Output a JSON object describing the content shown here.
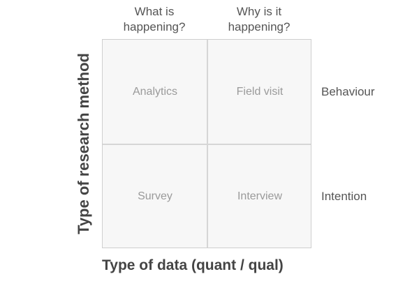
{
  "columns": [
    {
      "line1": "What is",
      "line2": "happening?"
    },
    {
      "line1": "Why is it",
      "line2": "happening?"
    }
  ],
  "rows": [
    "Behaviour",
    "Intention"
  ],
  "cells": {
    "top_left": "Analytics",
    "top_right": "Field visit",
    "bottom_left": "Survey",
    "bottom_right": "Interview"
  },
  "axis": {
    "y_title": "Type of research method",
    "x_title": "Type of data (quant / qual)"
  },
  "colors": {
    "cell_fill": "#f7f7f7",
    "grid_line": "#d6d6d6",
    "cell_text": "#9a9a9a",
    "label_text": "#555555",
    "title_text": "#444444"
  }
}
